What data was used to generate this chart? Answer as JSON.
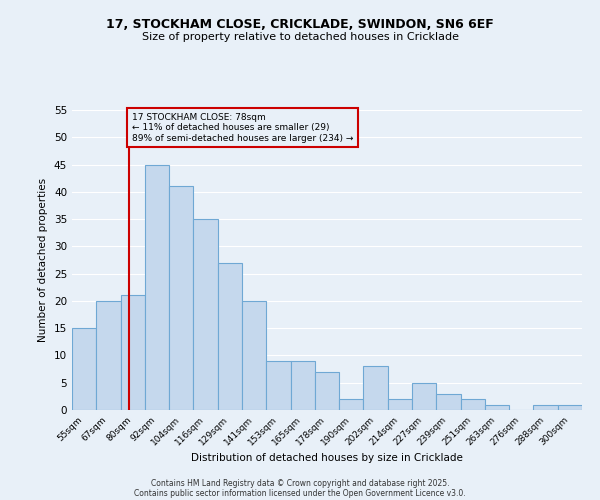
{
  "title1": "17, STOCKHAM CLOSE, CRICKLADE, SWINDON, SN6 6EF",
  "title2": "Size of property relative to detached houses in Cricklade",
  "xlabel": "Distribution of detached houses by size in Cricklade",
  "ylabel": "Number of detached properties",
  "categories": [
    "55sqm",
    "67sqm",
    "80sqm",
    "92sqm",
    "104sqm",
    "116sqm",
    "129sqm",
    "141sqm",
    "153sqm",
    "165sqm",
    "178sqm",
    "190sqm",
    "202sqm",
    "214sqm",
    "227sqm",
    "239sqm",
    "251sqm",
    "263sqm",
    "276sqm",
    "288sqm",
    "300sqm"
  ],
  "values": [
    15,
    20,
    21,
    45,
    41,
    35,
    27,
    20,
    9,
    9,
    7,
    2,
    8,
    2,
    5,
    3,
    2,
    1,
    0,
    1,
    1
  ],
  "bar_color": "#c5d8ed",
  "bar_edge_color": "#6fa8d4",
  "background_color": "#e8f0f8",
  "grid_color": "#ffffff",
  "annotation_text": "17 STOCKHAM CLOSE: 78sqm\n← 11% of detached houses are smaller (29)\n89% of semi-detached houses are larger (234) →",
  "vline_color": "#cc0000",
  "annotation_box_edge": "#cc0000",
  "ylim": [
    0,
    55
  ],
  "yticks": [
    0,
    5,
    10,
    15,
    20,
    25,
    30,
    35,
    40,
    45,
    50,
    55
  ],
  "footnote1": "Contains HM Land Registry data © Crown copyright and database right 2025.",
  "footnote2": "Contains public sector information licensed under the Open Government Licence v3.0."
}
